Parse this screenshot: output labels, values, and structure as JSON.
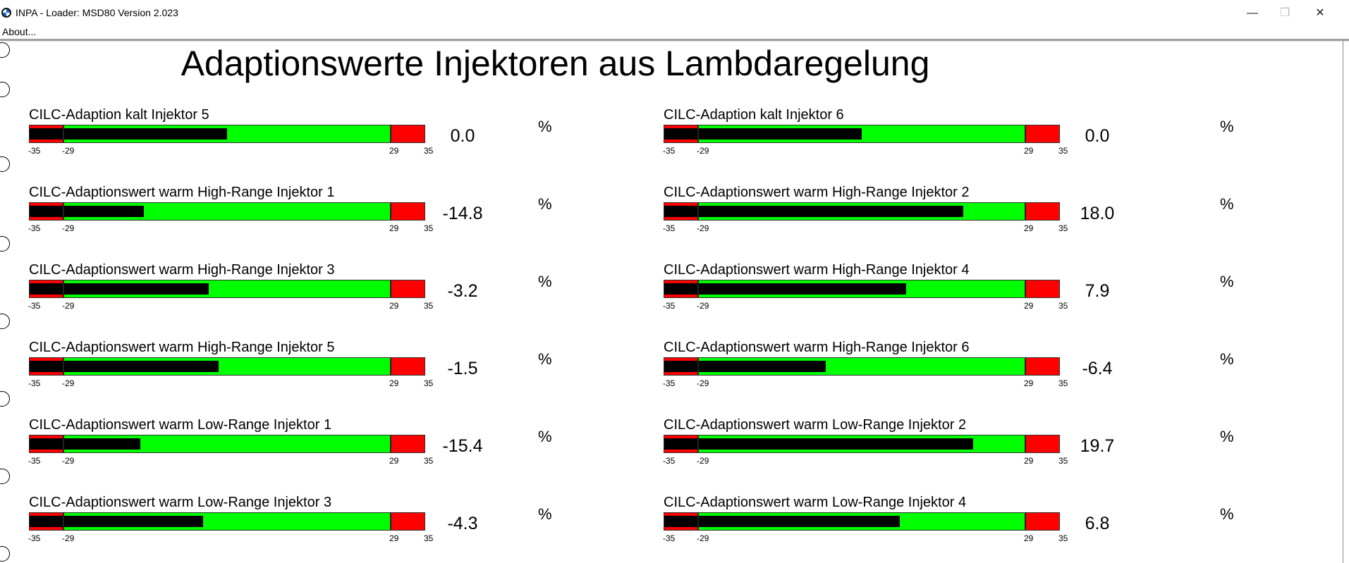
{
  "window": {
    "title": "INPA - Loader:  MSD80 Version 2.023",
    "minimize": "—",
    "restore": "❐",
    "close": "✕"
  },
  "menu": {
    "about": "About..."
  },
  "page_title": "Adaptionswerte Injektoren aus Lambdaregelung",
  "scale": {
    "min": -35,
    "warn_low": -29,
    "warn_high": 29,
    "max": 35,
    "ticks": [
      "-35",
      "-29",
      "29",
      "35"
    ]
  },
  "colors": {
    "ok": "#00ff00",
    "limit": "#ff0000",
    "fill": "#000000"
  },
  "meters": [
    {
      "label": "CILC-Adaption kalt Injektor 5",
      "value": "0.0",
      "unit": "%"
    },
    {
      "label": "CILC-Adaption kalt Injektor 6",
      "value": "0.0",
      "unit": "%"
    },
    {
      "label": "CILC-Adaptionswert warm High-Range Injektor 1",
      "value": "-14.8",
      "unit": "%"
    },
    {
      "label": "CILC-Adaptionswert warm High-Range Injektor 2",
      "value": "18.0",
      "unit": "%"
    },
    {
      "label": "CILC-Adaptionswert warm High-Range Injektor 3",
      "value": "-3.2",
      "unit": "%"
    },
    {
      "label": "CILC-Adaptionswert warm High-Range Injektor 4",
      "value": "7.9",
      "unit": "%"
    },
    {
      "label": "CILC-Adaptionswert warm High-Range Injektor 5",
      "value": "-1.5",
      "unit": "%"
    },
    {
      "label": "CILC-Adaptionswert warm High-Range Injektor 6",
      "value": "-6.4",
      "unit": "%"
    },
    {
      "label": "CILC-Adaptionswert warm Low-Range Injektor 1",
      "value": "-15.4",
      "unit": "%"
    },
    {
      "label": "CILC-Adaptionswert warm Low-Range Injektor 2",
      "value": "19.7",
      "unit": "%"
    },
    {
      "label": "CILC-Adaptionswert warm Low-Range Injektor 3",
      "value": "-4.3",
      "unit": "%"
    },
    {
      "label": "CILC-Adaptionswert warm Low-Range Injektor 4",
      "value": "6.8",
      "unit": "%"
    }
  ]
}
